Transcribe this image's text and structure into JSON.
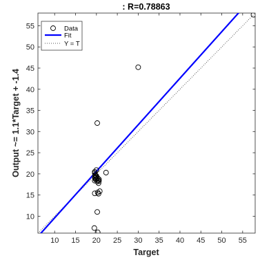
{
  "chart_data": {
    "type": "scatter",
    "title": ": R=0.78863",
    "xlabel": "Target",
    "ylabel": "Output ~= 1.1*Target + -1.4",
    "xlim": [
      6,
      58
    ],
    "ylim": [
      6,
      58
    ],
    "xticks": [
      10,
      15,
      20,
      25,
      30,
      35,
      40,
      45,
      50,
      55
    ],
    "yticks": [
      10,
      15,
      20,
      25,
      30,
      35,
      40,
      45,
      50,
      55
    ],
    "grid": false,
    "legend_position": "top-left",
    "series": [
      {
        "name": "Data",
        "marker": "circle",
        "color": "#000000",
        "x": [
          20.2,
          30.0,
          20.0,
          57.6,
          19.6,
          19.6,
          19.7,
          19.8,
          19.6,
          19.7,
          19.8,
          19.6,
          20.0,
          19.9,
          20.0,
          20.3,
          20.4,
          20.6,
          20.2,
          20.5,
          20.6,
          22.3,
          20.8,
          19.6,
          20.5,
          20.3,
          20.2,
          19.5,
          20.3
        ],
        "y": [
          32.0,
          45.2,
          20.9,
          57.6,
          20.5,
          20.2,
          19.8,
          19.6,
          19.3,
          19.0,
          18.7,
          18.4,
          18.8,
          19.2,
          19.5,
          19.0,
          18.5,
          18.7,
          18.2,
          17.8,
          18.3,
          20.3,
          15.9,
          15.4,
          15.3,
          15.6,
          11.0,
          7.2,
          6.2
        ]
      },
      {
        "name": "Fit",
        "line": "solid",
        "color": "#0000ff",
        "slope": 1.1,
        "intercept": -1.4
      },
      {
        "name": "Y = T",
        "line": "dotted",
        "color": "#555555",
        "slope": 1,
        "intercept": 0
      }
    ]
  }
}
